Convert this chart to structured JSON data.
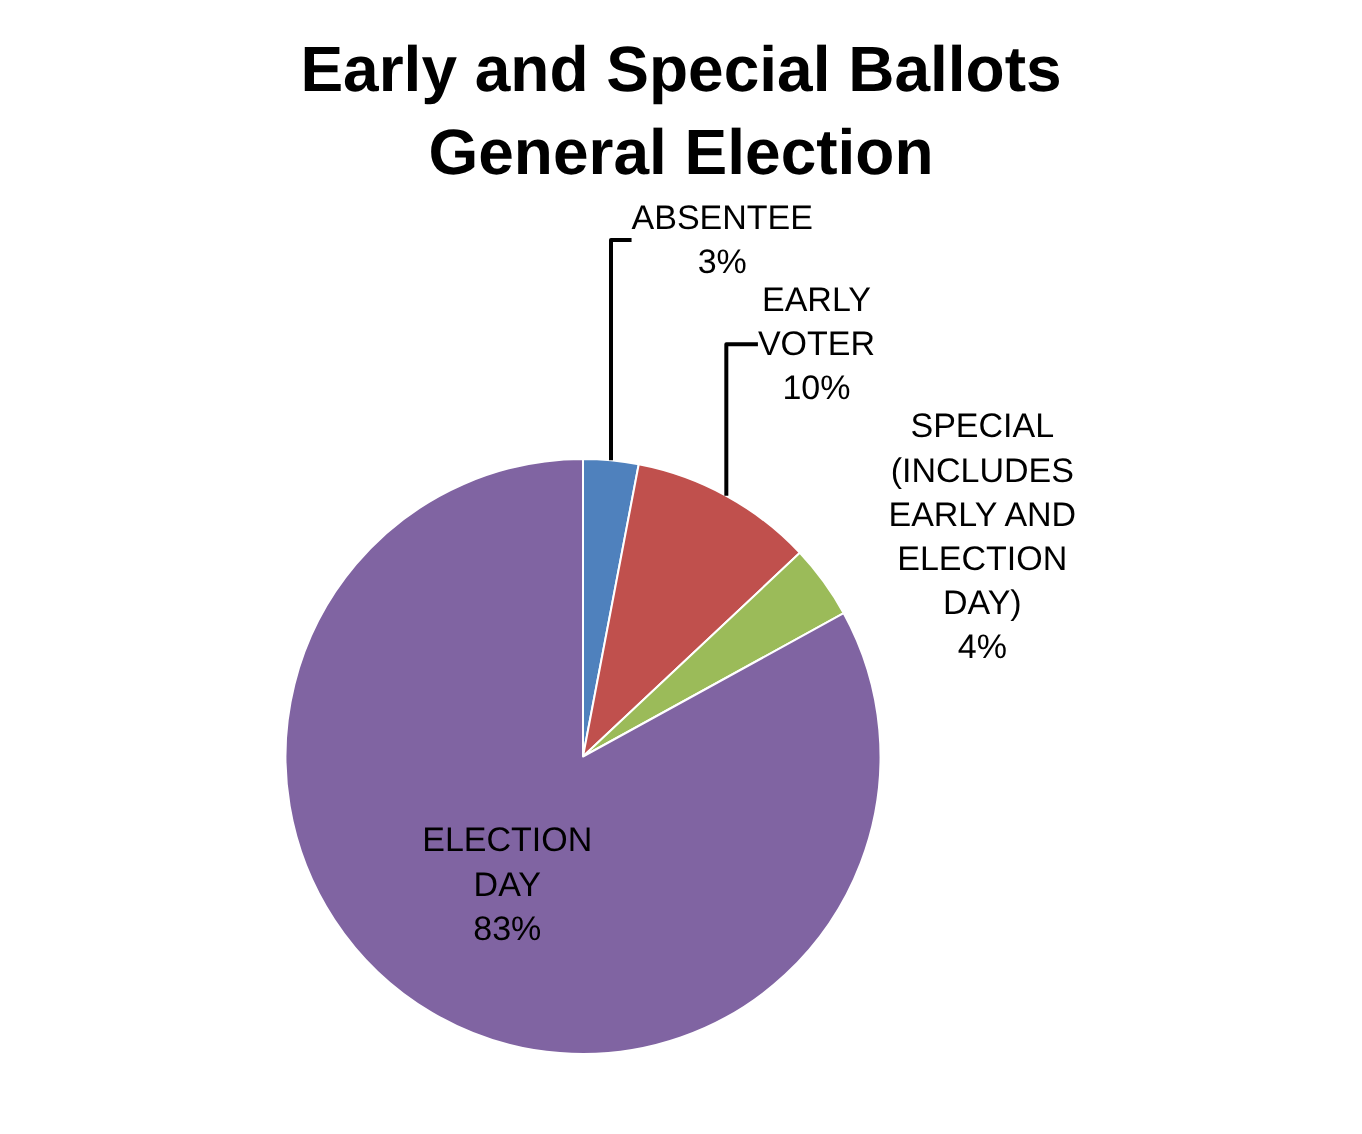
{
  "chart_data": {
    "type": "pie",
    "title": "Early and Special Ballots General Election",
    "categories": [
      "ABSENTEE",
      "EARLY VOTER",
      "SPECIAL (INCLUDES EARLY AND ELECTION DAY)",
      "ELECTION DAY"
    ],
    "values": [
      3,
      10,
      4,
      83
    ],
    "value_labels": [
      "3%",
      "10%",
      "4%",
      "83%"
    ],
    "colors": [
      "#4f81bd",
      "#c0504d",
      "#9bbb59",
      "#8064a2"
    ],
    "legend": false
  }
}
